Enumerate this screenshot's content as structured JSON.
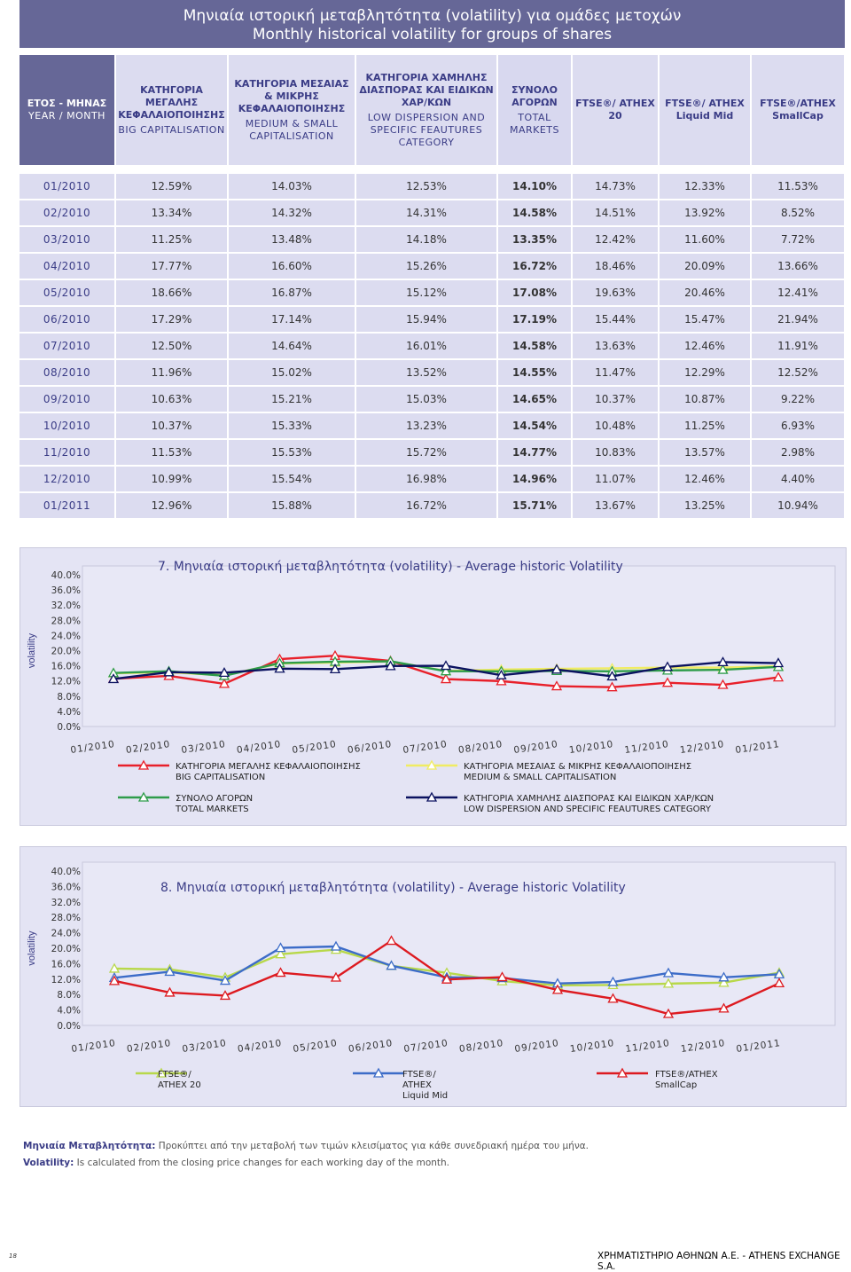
{
  "header": {
    "title_gr": "Μηνιαία ιστορική μεταβλητότητα (volatility) για ομάδες μετοχών",
    "title_en": "Monthly historical volatility for groups of shares"
  },
  "table": {
    "columns": [
      {
        "gr": "ΕΤΟΣ - ΜΗΝΑΣ",
        "en": "YEAR / MONTH"
      },
      {
        "gr": "ΚΑΤΗΓΟΡΙΑ ΜΕΓΑΛΗΣ ΚΕΦΑΛΑΙΟΠΟΙΗΣΗΣ",
        "en": "BIG CAPITALISATION"
      },
      {
        "gr": "ΚΑΤΗΓΟΡΙΑ ΜΕΣΑΙΑΣ & ΜΙΚΡΗΣ ΚΕΦΑΛΑΙΟΠΟΙΗΣΗΣ",
        "en": "MEDIUM & SMALL CAPITALISATION"
      },
      {
        "gr": "ΚΑΤΗΓΟΡΙΑ ΧΑΜΗΛΗΣ ΔΙΑΣΠΟΡΑΣ ΚΑΙ ΕΙΔΙΚΩΝ ΧΑΡ/ΚΩΝ",
        "en": "LOW DISPERSION AND SPECIFIC FEAUTURES CATEGORY"
      },
      {
        "gr": "ΣΥΝΟΛΟ ΑΓΟΡΩΝ",
        "en": "TOTAL MARKETS"
      },
      {
        "gr": "FTSE®/ ATHEX 20",
        "en": ""
      },
      {
        "gr": "FTSE®/ ATHEX Liquid Mid",
        "en": ""
      },
      {
        "gr": "FTSE®/ATHEX SmallCap",
        "en": ""
      }
    ],
    "rows": [
      [
        "01/2010",
        "12.59%",
        "14.03%",
        "12.53%",
        "14.10%",
        "14.73%",
        "12.33%",
        "11.53%"
      ],
      [
        "02/2010",
        "13.34%",
        "14.32%",
        "14.31%",
        "14.58%",
        "14.51%",
        "13.92%",
        "8.52%"
      ],
      [
        "03/2010",
        "11.25%",
        "13.48%",
        "14.18%",
        "13.35%",
        "12.42%",
        "11.60%",
        "7.72%"
      ],
      [
        "04/2010",
        "17.77%",
        "16.60%",
        "15.26%",
        "16.72%",
        "18.46%",
        "20.09%",
        "13.66%"
      ],
      [
        "05/2010",
        "18.66%",
        "16.87%",
        "15.12%",
        "17.08%",
        "19.63%",
        "20.46%",
        "12.41%"
      ],
      [
        "06/2010",
        "17.29%",
        "17.14%",
        "15.94%",
        "17.19%",
        "15.44%",
        "15.47%",
        "21.94%"
      ],
      [
        "07/2010",
        "12.50%",
        "14.64%",
        "16.01%",
        "14.58%",
        "13.63%",
        "12.46%",
        "11.91%"
      ],
      [
        "08/2010",
        "11.96%",
        "15.02%",
        "13.52%",
        "14.55%",
        "11.47%",
        "12.29%",
        "12.52%"
      ],
      [
        "09/2010",
        "10.63%",
        "15.21%",
        "15.03%",
        "14.65%",
        "10.37%",
        "10.87%",
        "9.22%"
      ],
      [
        "10/2010",
        "10.37%",
        "15.33%",
        "13.23%",
        "14.54%",
        "10.48%",
        "11.25%",
        "6.93%"
      ],
      [
        "11/2010",
        "11.53%",
        "15.53%",
        "15.72%",
        "14.77%",
        "10.83%",
        "13.57%",
        "2.98%"
      ],
      [
        "12/2010",
        "10.99%",
        "15.54%",
        "16.98%",
        "14.96%",
        "11.07%",
        "12.46%",
        "4.40%"
      ],
      [
        "01/2011",
        "12.96%",
        "15.88%",
        "16.72%",
        "15.71%",
        "13.67%",
        "13.25%",
        "10.94%"
      ]
    ]
  },
  "chart_data": [
    {
      "type": "line",
      "title": "7. Μηνιαία ιστορική μεταβλητότητα (volatility) - Average historic Volatility",
      "ylabel": "volatility",
      "xlabel": "",
      "ylim": [
        0,
        40
      ],
      "yticks": [
        "0.0%",
        "4.0%",
        "8.0%",
        "12.0%",
        "16.0%",
        "20.0%",
        "24.0%",
        "28.0%",
        "32.0%",
        "36.0%",
        "40.0%"
      ],
      "categories": [
        "01/2010",
        "02/2010",
        "03/2010",
        "04/2010",
        "05/2010",
        "06/2010",
        "07/2010",
        "08/2010",
        "09/2010",
        "10/2010",
        "11/2010",
        "12/2010",
        "01/2011"
      ],
      "grid": false,
      "legend_position": "bottom",
      "series": [
        {
          "name": "ΚΑΤΗΓΟΡΙΑ ΜΕΓΑΛΗΣ ΚΕΦΑΛΑΙΟΠΟΙΗΣΗΣ",
          "name2": "BIG CAPITALISATION",
          "color": "#e8202a",
          "values": [
            12.59,
            13.34,
            11.25,
            17.77,
            18.66,
            17.29,
            12.5,
            11.96,
            10.63,
            10.37,
            11.53,
            10.99,
            12.96
          ]
        },
        {
          "name": "ΚΑΤΗΓΟΡΙΑ ΜΕΣΑΙΑΣ & ΜΙΚΡΗΣ ΚΕΦΑΛΑΙΟΠΟΙΗΣΗΣ",
          "name2": "MEDIUM & SMALL CAPITALISATION",
          "color": "#f0ec63",
          "values": [
            14.03,
            14.32,
            13.48,
            16.6,
            16.87,
            17.14,
            14.64,
            15.02,
            15.21,
            15.33,
            15.53,
            15.54,
            15.88
          ]
        },
        {
          "name": "ΣΥΝΟΛΟ ΑΓΟΡΩΝ",
          "name2": "TOTAL MARKETS",
          "color": "#2e9c4a",
          "values": [
            14.1,
            14.58,
            13.35,
            16.72,
            17.08,
            17.19,
            14.58,
            14.55,
            14.65,
            14.54,
            14.77,
            14.96,
            15.71
          ]
        },
        {
          "name": "ΚΑΤΗΓΟΡΙΑ ΧΑΜΗΛΗΣ ΔΙΑΣΠΟΡΑΣ ΚΑΙ ΕΙΔΙΚΩΝ ΧΑΡ/ΚΩΝ",
          "name2": "LOW DISPERSION AND SPECIFIC FEAUTURES CATEGORY",
          "color": "#0b1260",
          "values": [
            12.53,
            14.31,
            14.18,
            15.26,
            15.12,
            15.94,
            16.01,
            13.52,
            15.03,
            13.23,
            15.72,
            16.98,
            16.72
          ]
        }
      ]
    },
    {
      "type": "line",
      "title": "8. Μηνιαία ιστορική μεταβλητότητα (volatility) - Average historic Volatility",
      "ylabel": "volatility",
      "xlabel": "",
      "ylim": [
        0,
        40
      ],
      "yticks": [
        "0.0%",
        "4.0%",
        "8.0%",
        "12.0%",
        "16.0%",
        "20.0%",
        "24.0%",
        "28.0%",
        "32.0%",
        "36.0%",
        "40.0%"
      ],
      "categories": [
        "01/2010",
        "02/2010",
        "03/2010",
        "04/2010",
        "05/2010",
        "06/2010",
        "07/2010",
        "08/2010",
        "09/2010",
        "10/2010",
        "11/2010",
        "12/2010",
        "01/2011"
      ],
      "grid": false,
      "legend_position": "bottom",
      "series": [
        {
          "name": "FTSE®/",
          "name2": "ATHEX 20",
          "name3": "",
          "color": "#b8d84a",
          "values": [
            14.73,
            14.51,
            12.42,
            18.46,
            19.63,
            15.44,
            13.63,
            11.47,
            10.37,
            10.48,
            10.83,
            11.07,
            13.67
          ]
        },
        {
          "name": "FTSE®/",
          "name2": "ATHEX",
          "name3": "Liquid Mid",
          "color": "#3c6cc8",
          "values": [
            12.33,
            13.92,
            11.6,
            20.09,
            20.46,
            15.47,
            12.46,
            12.29,
            10.87,
            11.25,
            13.57,
            12.46,
            13.25
          ]
        },
        {
          "name": "FTSE®/ATHEX",
          "name2": "SmallCap",
          "name3": "",
          "color": "#dd1a20",
          "values": [
            11.53,
            8.52,
            7.72,
            13.66,
            12.41,
            21.94,
            11.91,
            12.52,
            9.22,
            6.93,
            2.98,
            4.4,
            10.94
          ]
        }
      ]
    }
  ],
  "notes": {
    "gr_label": "Μηνιαία Μεταβλητότητα:",
    "gr_text": " Προκύπτει από την μεταβολή των τιμών κλεισίματος για κάθε συνεδριακή ημέρα του μήνα.",
    "en_label": "Volatility:",
    "en_text": " Is calculated from the closing price changes for each working day of the month."
  },
  "footer": {
    "page_number": "18",
    "company": "ΧΡΗΜΑΤΙΣΤΗΡΙΟ ΑΘΗΝΩΝ Α.Ε. - ATHENS EXCHANGE S.A."
  }
}
